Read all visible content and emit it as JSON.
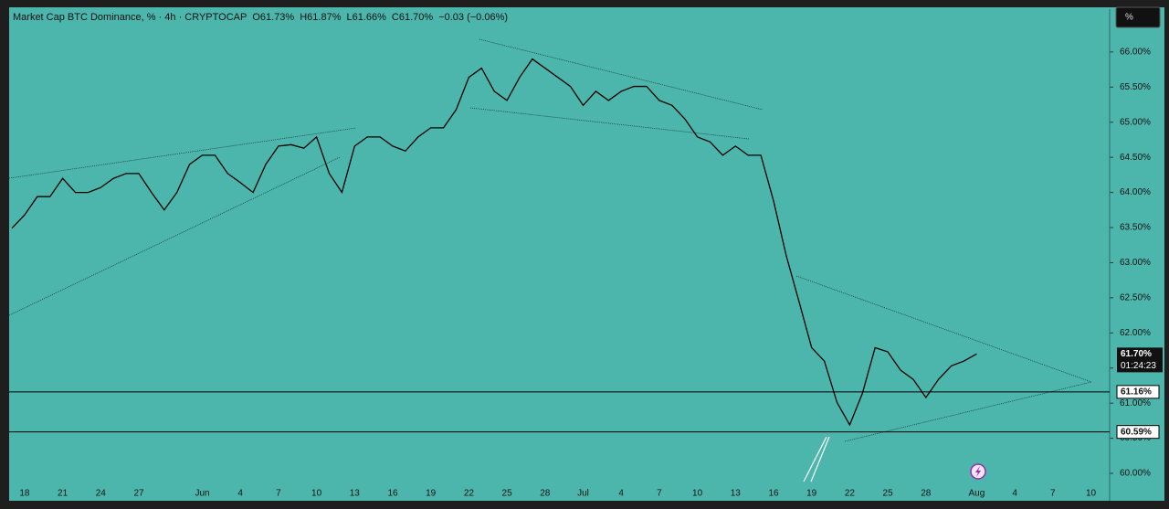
{
  "chart_data": {
    "type": "line",
    "title": "Market Cap BTC Dominance, % · 4h · CRYPTOCAP",
    "legend_text": [
      "O61.73%",
      "H61.87%",
      "L61.66%",
      "C61.70%",
      "−0.03 (−0.06%)"
    ],
    "unit_button": "%",
    "color": "#000000",
    "background": "#4db6ac",
    "grid": false,
    "categories": [
      null,
      "18",
      null,
      null,
      "21",
      null,
      null,
      "24",
      null,
      null,
      "27",
      null,
      null,
      null,
      null,
      "Jun",
      null,
      null,
      "4",
      null,
      null,
      "7",
      null,
      null,
      "10",
      null,
      null,
      "13",
      null,
      null,
      "16",
      null,
      null,
      "19",
      null,
      null,
      "22",
      null,
      null,
      "25",
      null,
      null,
      "28",
      null,
      null,
      "Jul",
      null,
      null,
      "4",
      null,
      null,
      "7",
      null,
      null,
      "10",
      null,
      null,
      "13",
      null,
      null,
      "16",
      null,
      null,
      "19",
      null,
      null,
      "22",
      null,
      null,
      "25",
      null,
      null,
      "28",
      null,
      null,
      null,
      "Aug",
      null,
      null,
      "4",
      null,
      null,
      "7",
      null,
      null,
      "10",
      null
    ],
    "values": [
      63.49,
      63.68,
      63.94,
      63.94,
      64.2,
      64.0,
      64.0,
      64.07,
      64.2,
      64.27,
      64.27,
      64.0,
      63.75,
      64.0,
      64.4,
      64.53,
      64.53,
      64.27,
      64.14,
      64.0,
      64.4,
      64.66,
      64.68,
      64.63,
      64.79,
      64.27,
      64.0,
      64.66,
      64.79,
      64.79,
      64.66,
      64.59,
      64.79,
      64.92,
      64.92,
      65.18,
      65.64,
      65.77,
      65.44,
      65.31,
      65.64,
      65.9,
      65.77,
      65.64,
      65.51,
      65.24,
      65.44,
      65.31,
      65.44,
      65.51,
      65.51,
      65.31,
      65.24,
      65.05,
      64.79,
      64.72,
      64.53,
      64.66,
      64.53,
      64.53,
      63.88,
      63.1,
      62.45,
      61.79,
      61.6,
      61.01,
      60.69,
      61.14,
      61.79,
      61.73,
      61.47,
      61.34,
      61.08,
      61.34,
      61.53,
      61.6,
      61.7,
      null,
      null,
      null,
      null,
      null,
      null,
      null,
      null,
      null,
      null
    ],
    "ylim": [
      59.61,
      66.61
    ],
    "yticks": [
      {
        "value": 60,
        "label": "60.00%"
      },
      {
        "value": 60.5,
        "label": "60.50%"
      },
      {
        "value": 61,
        "label": "61.00%"
      },
      {
        "value": 61.5,
        "label": "61.50%"
      },
      {
        "value": 62,
        "label": "62.00%"
      },
      {
        "value": 62.5,
        "label": "62.50%"
      },
      {
        "value": 63,
        "label": "63.00%"
      },
      {
        "value": 63.5,
        "label": "63.50%"
      },
      {
        "value": 64,
        "label": "64.00%"
      },
      {
        "value": 64.5,
        "label": "64.50%"
      },
      {
        "value": 65,
        "label": "65.00%"
      },
      {
        "value": 65.5,
        "label": "65.50%"
      },
      {
        "value": 66,
        "label": "66.00%"
      }
    ],
    "levels": [
      {
        "value": 61.16,
        "label": "61.16%"
      },
      {
        "value": 60.59,
        "label": "60.59%"
      }
    ],
    "last_price": {
      "value": 61.7,
      "label": "61.70%"
    },
    "countdown": "01:24:23"
  }
}
